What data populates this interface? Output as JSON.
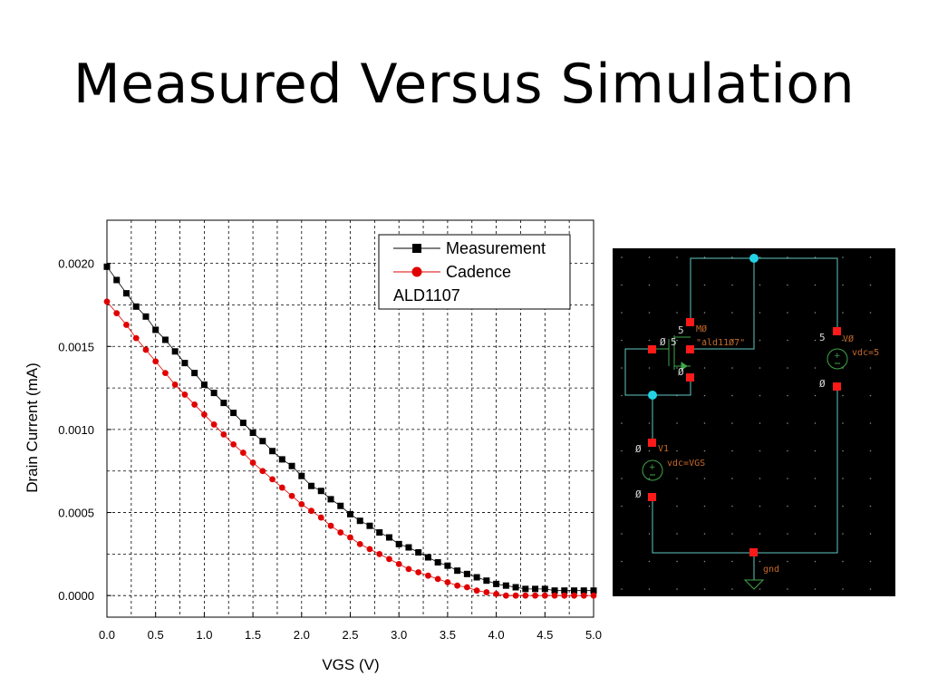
{
  "slide": {
    "title": "Measured Versus Simulation"
  },
  "chart_data": {
    "type": "scatter",
    "xlabel": "VGS (V)",
    "ylabel": "Drain Current (mA)",
    "xlim": [
      0,
      5
    ],
    "ylim": [
      -0.00013,
      0.00226
    ],
    "x_ticks": [
      0.0,
      0.5,
      1.0,
      1.5,
      2.0,
      2.5,
      3.0,
      3.5,
      4.0,
      4.5,
      5.0
    ],
    "x_tick_labels": [
      "0.0",
      "0.5",
      "1.0",
      "1.5",
      "2.0",
      "2.5",
      "3.0",
      "3.5",
      "4.0",
      "4.5",
      "5.0"
    ],
    "y_ticks": [
      0.0,
      0.0005,
      0.001,
      0.0015,
      0.002
    ],
    "y_tick_labels": [
      "0.0000",
      "0.0005",
      "0.0010",
      "0.0015",
      "0.0020"
    ],
    "grid": true,
    "legend_position": "top-right",
    "legend_note": "ALD1107",
    "series": [
      {
        "name": "Measurement",
        "color": "#000000",
        "marker": "square",
        "x": [
          0,
          0.1,
          0.2,
          0.3,
          0.4,
          0.5,
          0.6,
          0.7,
          0.8,
          0.9,
          1.0,
          1.1,
          1.2,
          1.3,
          1.4,
          1.5,
          1.6,
          1.7,
          1.8,
          1.9,
          2.0,
          2.1,
          2.2,
          2.3,
          2.4,
          2.5,
          2.6,
          2.7,
          2.8,
          2.9,
          3.0,
          3.1,
          3.2,
          3.3,
          3.4,
          3.5,
          3.6,
          3.7,
          3.8,
          3.9,
          4.0,
          4.1,
          4.2,
          4.3,
          4.4,
          4.5,
          4.6,
          4.7,
          4.8,
          4.9,
          5.0
        ],
        "y": [
          0.00198,
          0.0019,
          0.00182,
          0.00174,
          0.00168,
          0.0016,
          0.00154,
          0.00147,
          0.0014,
          0.00134,
          0.00127,
          0.00122,
          0.00116,
          0.0011,
          0.00104,
          0.00098,
          0.00093,
          0.00087,
          0.00082,
          0.00078,
          0.00072,
          0.00066,
          0.00063,
          0.00058,
          0.00054,
          0.00049,
          0.00045,
          0.00042,
          0.00038,
          0.00035,
          0.00031,
          0.00029,
          0.00026,
          0.00023,
          0.0002,
          0.00018,
          0.00015,
          0.00013,
          0.00011,
          9e-05,
          7e-05,
          6e-05,
          5e-05,
          4e-05,
          4e-05,
          4e-05,
          3e-05,
          3e-05,
          3e-05,
          3e-05,
          3e-05
        ]
      },
      {
        "name": "Cadence",
        "color": "#e00000",
        "marker": "circle",
        "x": [
          0,
          0.1,
          0.2,
          0.3,
          0.4,
          0.5,
          0.6,
          0.7,
          0.8,
          0.9,
          1.0,
          1.1,
          1.2,
          1.3,
          1.4,
          1.5,
          1.6,
          1.7,
          1.8,
          1.9,
          2.0,
          2.1,
          2.2,
          2.3,
          2.4,
          2.5,
          2.6,
          2.7,
          2.8,
          2.9,
          3.0,
          3.1,
          3.2,
          3.3,
          3.4,
          3.5,
          3.6,
          3.7,
          3.8,
          3.9,
          4.0,
          4.1,
          4.2,
          4.3,
          4.4,
          4.5,
          4.6,
          4.7,
          4.8,
          4.9,
          5.0
        ],
        "y": [
          0.00177,
          0.0017,
          0.00163,
          0.00155,
          0.00148,
          0.00141,
          0.00134,
          0.00127,
          0.00121,
          0.00115,
          0.00109,
          0.00103,
          0.00097,
          0.00091,
          0.00086,
          0.0008,
          0.00075,
          0.0007,
          0.00065,
          0.0006,
          0.00055,
          0.00051,
          0.00047,
          0.00042,
          0.00038,
          0.00035,
          0.00031,
          0.00028,
          0.00025,
          0.00022,
          0.00019,
          0.00016,
          0.00014,
          0.00012,
          0.0001,
          8e-05,
          6e-05,
          5e-05,
          3e-05,
          2e-05,
          1e-05,
          0.0,
          0.0,
          0.0,
          0.0,
          0.0,
          0.0,
          0.0,
          0.0,
          0.0,
          0.0
        ]
      }
    ]
  },
  "schematic": {
    "m0_name": "MØ",
    "m0_model": "\"ald11Ø7\"",
    "m0_pin_drain": "5",
    "m0_pin_gate": "Ø",
    "m0_pin_gate2": "5",
    "m0_pin_source": "Ø",
    "v0_name": "VØ",
    "v0_value": "vdc=5",
    "v0_pin_top": "5",
    "v0_pin_bottom": "Ø",
    "v1_name": "V1",
    "v1_value": "vdc=VGS",
    "v1_pin_top": "Ø",
    "v1_pin_bottom": "Ø",
    "gnd_label": "gnd",
    "colors": {
      "background": "#000000",
      "wire": "#5fc9c2",
      "pin": "#ff1a1a",
      "junction": "#22d3e6",
      "grid_dot": "#8a8a8a",
      "component": "#3fa64a",
      "label": "#c76a2a"
    }
  }
}
